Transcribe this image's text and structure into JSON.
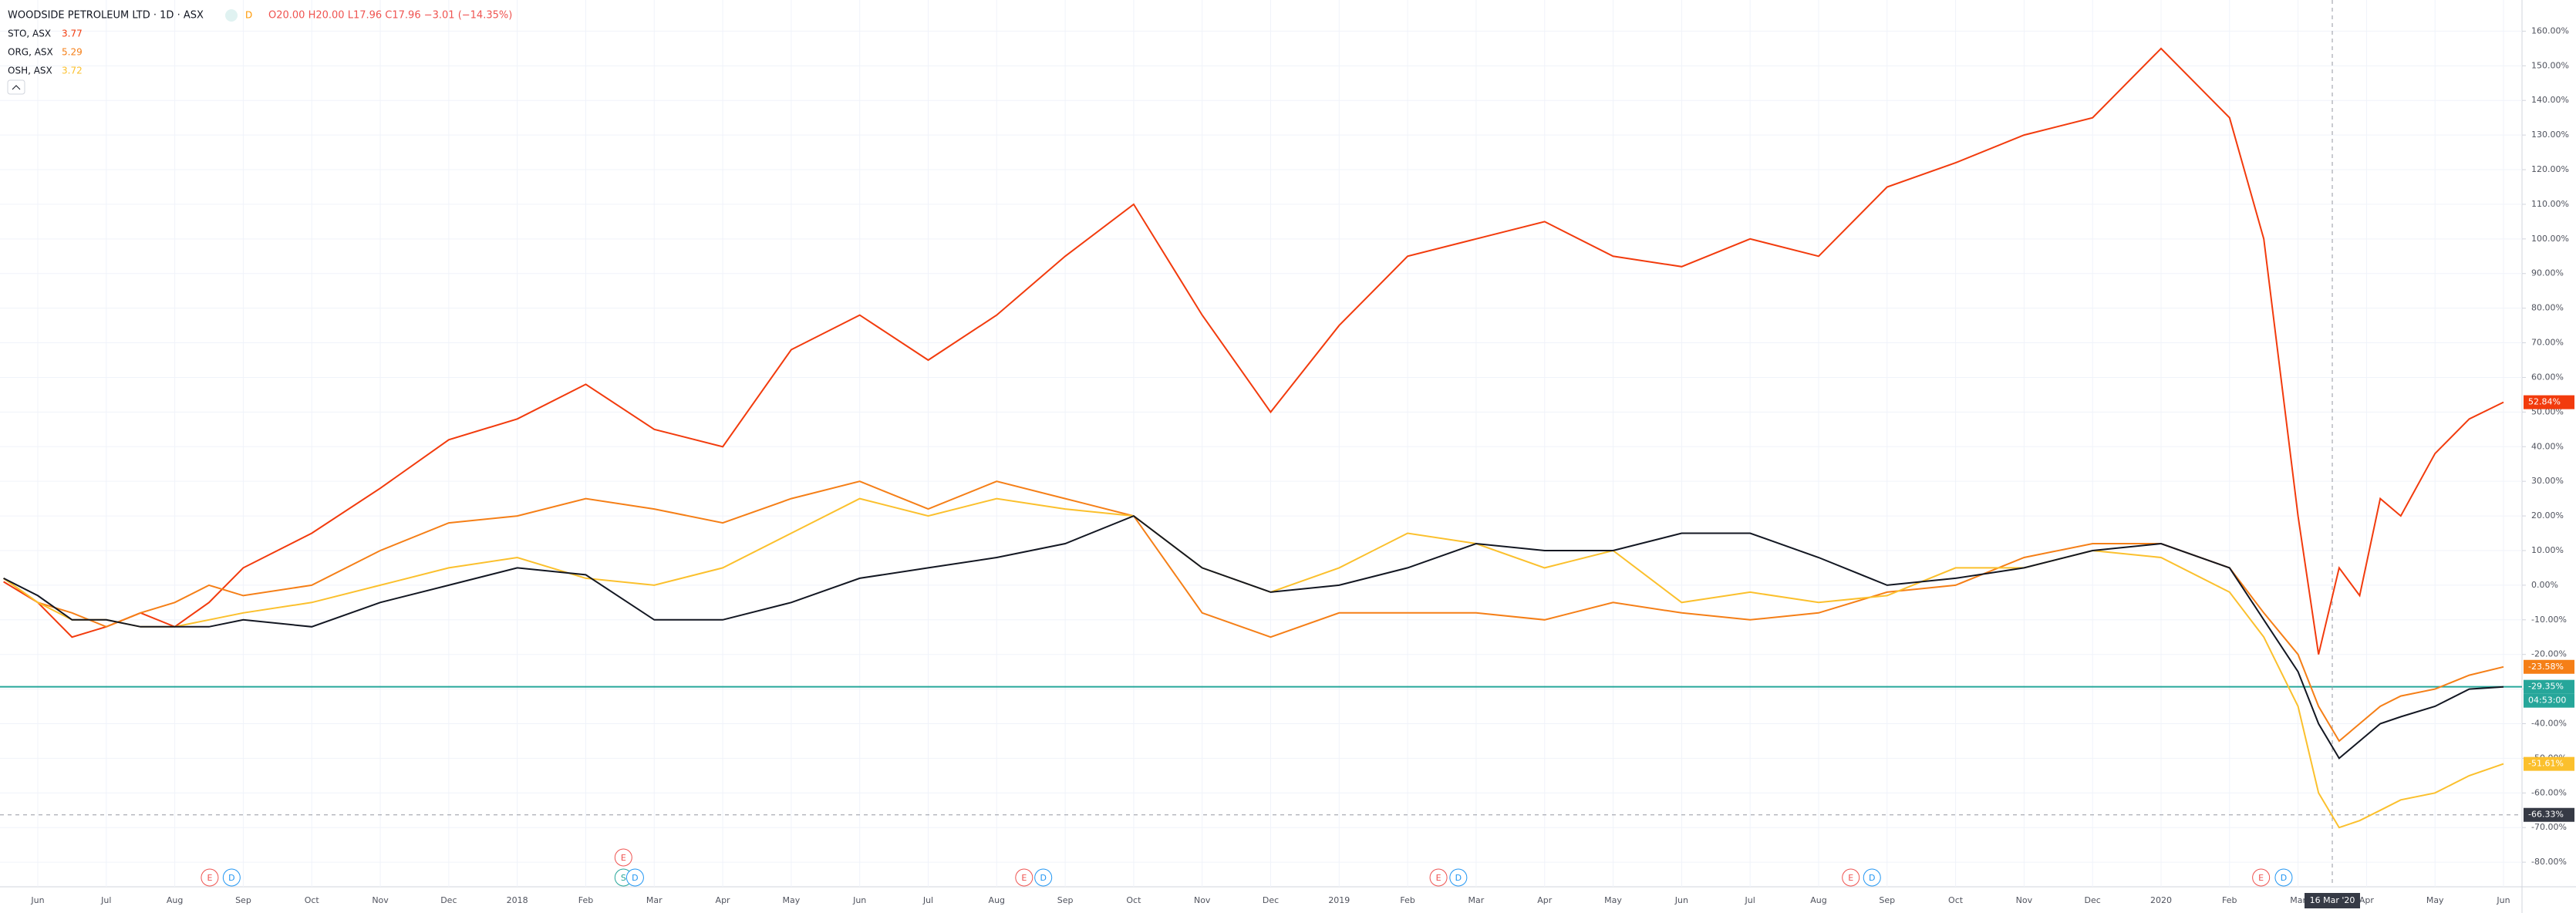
{
  "chart_data": {
    "type": "line",
    "title": "WOODSIDE PETROLEUM LTD · 1D · ASX",
    "interval_badge": "D",
    "ohlc": "O20.00 H20.00 L17.96 C17.96 −3.01 (−14.35%)",
    "xlim": [
      0.448,
      37.27
    ],
    "ylim": [
      -87.1,
      169
    ],
    "xticks": [
      {
        "value": 1,
        "label": "Jun"
      },
      {
        "value": 2,
        "label": "Jul"
      },
      {
        "value": 3,
        "label": "Aug"
      },
      {
        "value": 4,
        "label": "Sep"
      },
      {
        "value": 5,
        "label": "Oct"
      },
      {
        "value": 6,
        "label": "Nov"
      },
      {
        "value": 7,
        "label": "Dec"
      },
      {
        "value": 8,
        "label": "2018"
      },
      {
        "value": 9,
        "label": "Feb"
      },
      {
        "value": 10,
        "label": "Mar"
      },
      {
        "value": 11,
        "label": "Apr"
      },
      {
        "value": 12,
        "label": "May"
      },
      {
        "value": 13,
        "label": "Jun"
      },
      {
        "value": 14,
        "label": "Jul"
      },
      {
        "value": 15,
        "label": "Aug"
      },
      {
        "value": 16,
        "label": "Sep"
      },
      {
        "value": 17,
        "label": "Oct"
      },
      {
        "value": 18,
        "label": "Nov"
      },
      {
        "value": 19,
        "label": "Dec"
      },
      {
        "value": 20,
        "label": "2019"
      },
      {
        "value": 21,
        "label": "Feb"
      },
      {
        "value": 22,
        "label": "Mar"
      },
      {
        "value": 23,
        "label": "Apr"
      },
      {
        "value": 24,
        "label": "May"
      },
      {
        "value": 25,
        "label": "Jun"
      },
      {
        "value": 26,
        "label": "Jul"
      },
      {
        "value": 27,
        "label": "Aug"
      },
      {
        "value": 28,
        "label": "Sep"
      },
      {
        "value": 29,
        "label": "Oct"
      },
      {
        "value": 30,
        "label": "Nov"
      },
      {
        "value": 31,
        "label": "Dec"
      },
      {
        "value": 32,
        "label": "2020"
      },
      {
        "value": 33,
        "label": "Feb"
      },
      {
        "value": 34,
        "label": "Mar"
      },
      {
        "value": 35,
        "label": "Apr"
      },
      {
        "value": 36,
        "label": "May"
      },
      {
        "value": 37,
        "label": "Jun"
      }
    ],
    "yticks": [
      {
        "value": -80,
        "label": "-80.00%"
      },
      {
        "value": -70,
        "label": "-70.00%"
      },
      {
        "value": -60,
        "label": "-60.00%"
      },
      {
        "value": -50,
        "label": "-50.00%"
      },
      {
        "value": -40,
        "label": "-40.00%"
      },
      {
        "value": -30,
        "label": "-30.00%"
      },
      {
        "value": -20,
        "label": "-20.00%"
      },
      {
        "value": -10,
        "label": "-10.00%"
      },
      {
        "value": 0,
        "label": "0.00%"
      },
      {
        "value": 10,
        "label": "10.00%"
      },
      {
        "value": 20,
        "label": "20.00%"
      },
      {
        "value": 30,
        "label": "30.00%"
      },
      {
        "value": 40,
        "label": "40.00%"
      },
      {
        "value": 50,
        "label": "50.00%"
      },
      {
        "value": 60,
        "label": "60.00%"
      },
      {
        "value": 70,
        "label": "70.00%"
      },
      {
        "value": 80,
        "label": "80.00%"
      },
      {
        "value": 90,
        "label": "90.00%"
      },
      {
        "value": 100,
        "label": "100.00%"
      },
      {
        "value": 110,
        "label": "110.00%"
      },
      {
        "value": 120,
        "label": "120.00%"
      },
      {
        "value": 130,
        "label": "130.00%"
      },
      {
        "value": 140,
        "label": "140.00%"
      },
      {
        "value": 150,
        "label": "150.00%"
      },
      {
        "value": 160,
        "label": "160.00%"
      }
    ],
    "grid": true,
    "x": [
      0.5,
      1,
      1.5,
      2,
      2.5,
      3,
      3.5,
      4,
      5,
      6,
      7,
      8,
      9,
      10,
      11,
      12,
      13,
      14,
      15,
      16,
      17,
      18,
      19,
      20,
      21,
      22,
      23,
      24,
      25,
      26,
      27,
      28,
      29,
      30,
      31,
      32,
      33,
      33.5,
      34,
      34.3,
      34.6,
      34.9,
      35.2,
      35.5,
      36,
      36.5,
      37
    ],
    "series": [
      {
        "name": "STO, ASX",
        "price": 3.77,
        "color": "#f23b0d",
        "last": {
          "value": 52.84,
          "label": "52.84%"
        },
        "values": [
          1,
          -5,
          -15,
          -12,
          -8,
          -12,
          -5,
          5,
          15,
          28,
          42,
          48,
          58,
          45,
          40,
          68,
          78,
          65,
          78,
          95,
          110,
          78,
          50,
          75,
          95,
          100,
          105,
          95,
          92,
          100,
          95,
          115,
          122,
          130,
          135,
          155,
          135,
          100,
          20,
          -20,
          5,
          -3,
          25,
          20,
          38,
          48,
          52.84
        ]
      },
      {
        "name": "ORG, ASX",
        "price": 5.29,
        "color": "#f57f17",
        "last": {
          "value": -23.58,
          "label": "-23.58%"
        },
        "values": [
          2,
          -5,
          -8,
          -12,
          -8,
          -5,
          0,
          -3,
          0,
          10,
          18,
          20,
          25,
          22,
          18,
          25,
          30,
          22,
          30,
          25,
          20,
          -8,
          -15,
          -8,
          -8,
          -8,
          -10,
          -5,
          -8,
          -10,
          -8,
          -2,
          0,
          8,
          12,
          12,
          5,
          -8,
          -20,
          -35,
          -45,
          -40,
          -35,
          -32,
          -30,
          -26,
          -23.58
        ]
      },
      {
        "name": "OSH, ASX",
        "price": 3.72,
        "color": "#fbc02d",
        "last": {
          "value": -51.61,
          "label": "-51.61%"
        },
        "values": [
          2,
          -5,
          -10,
          -10,
          -12,
          -12,
          -10,
          -8,
          -5,
          0,
          5,
          8,
          2,
          0,
          5,
          15,
          25,
          20,
          25,
          22,
          20,
          5,
          -2,
          5,
          15,
          12,
          5,
          10,
          -5,
          -2,
          -5,
          -3,
          5,
          5,
          10,
          8,
          -2,
          -15,
          -35,
          -60,
          -70,
          -68,
          -65,
          -62,
          -60,
          -55,
          -51.61
        ]
      },
      {
        "color": "#131722",
        "last": {
          "value": -29.35,
          "label": "-29.35%"
        },
        "countdown": "04:53:00",
        "values": [
          2,
          -3,
          -10,
          -10,
          -12,
          -12,
          -12,
          -10,
          -12,
          -5,
          0,
          5,
          3,
          -10,
          -10,
          -5,
          2,
          5,
          8,
          12,
          20,
          5,
          -2,
          0,
          5,
          12,
          10,
          10,
          15,
          15,
          8,
          0,
          2,
          5,
          10,
          12,
          5,
          -10,
          -25,
          -40,
          -50,
          -45,
          -40,
          -38,
          -35,
          -30,
          -29.35
        ]
      }
    ],
    "price_line_color": "#26a69a",
    "crosshair": {
      "x": 34.5,
      "x_label": "16 Mar '20",
      "y": -66.33,
      "y_label": "-66.33%"
    },
    "events": [
      {
        "x": 3.51,
        "label": "E"
      },
      {
        "x": 3.83,
        "label": "D"
      },
      {
        "x": 9.55,
        "label": "S"
      },
      {
        "x": 9.55,
        "label": "E"
      },
      {
        "x": 9.72,
        "label": "D"
      },
      {
        "x": 15.4,
        "label": "E"
      },
      {
        "x": 15.68,
        "label": "D"
      },
      {
        "x": 21.45,
        "label": "E"
      },
      {
        "x": 21.74,
        "label": "D"
      },
      {
        "x": 27.47,
        "label": "E"
      },
      {
        "x": 27.78,
        "label": "D"
      },
      {
        "x": 33.46,
        "label": "E"
      },
      {
        "x": 33.79,
        "label": "D"
      }
    ]
  }
}
